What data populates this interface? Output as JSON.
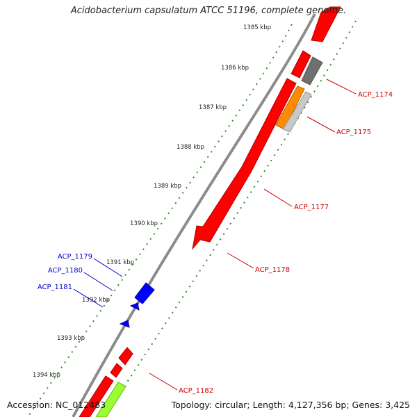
{
  "title": "Acidobacterium capsulatum ATCC 51196, complete genome.",
  "footer": {
    "accession": "Accession: NC_012483",
    "summary": "Topology: circular; Length: 4,127,356 bp; Genes: 3,425"
  },
  "ticks": [
    {
      "label": "1385 kbp"
    },
    {
      "label": "1386 kbp"
    },
    {
      "label": "1387 kbp"
    },
    {
      "label": "1388 kbp"
    },
    {
      "label": "1389 kbp"
    },
    {
      "label": "1390 kbp"
    },
    {
      "label": "1391 kbp"
    },
    {
      "label": "1392 kbp"
    },
    {
      "label": "1393 kbp"
    },
    {
      "label": "1394 kbp"
    }
  ],
  "gene_labels": [
    {
      "label": "ACP_1174",
      "color": "#cc0000"
    },
    {
      "label": "ACP_1175",
      "color": "#cc0000"
    },
    {
      "label": "ACP_1177",
      "color": "#cc0000"
    },
    {
      "label": "ACP_1178",
      "color": "#cc0000"
    },
    {
      "label": "ACP_1182",
      "color": "#cc0000"
    },
    {
      "label": "ACP_1179",
      "color": "#0000cc"
    },
    {
      "label": "ACP_1180",
      "color": "#0000cc"
    },
    {
      "label": "ACP_1181",
      "color": "#0000cc"
    }
  ],
  "colors": {
    "forward_cds": "#ff0000",
    "reverse_cds": "#0000ff",
    "tick_marks": "#2e8b22",
    "backbone": "#8c8c8c",
    "gene_grey": "#707070",
    "gene_lightgrey": "#c8c8c8",
    "gene_orange": "#ff8c00",
    "gene_green": "#99ff33"
  }
}
